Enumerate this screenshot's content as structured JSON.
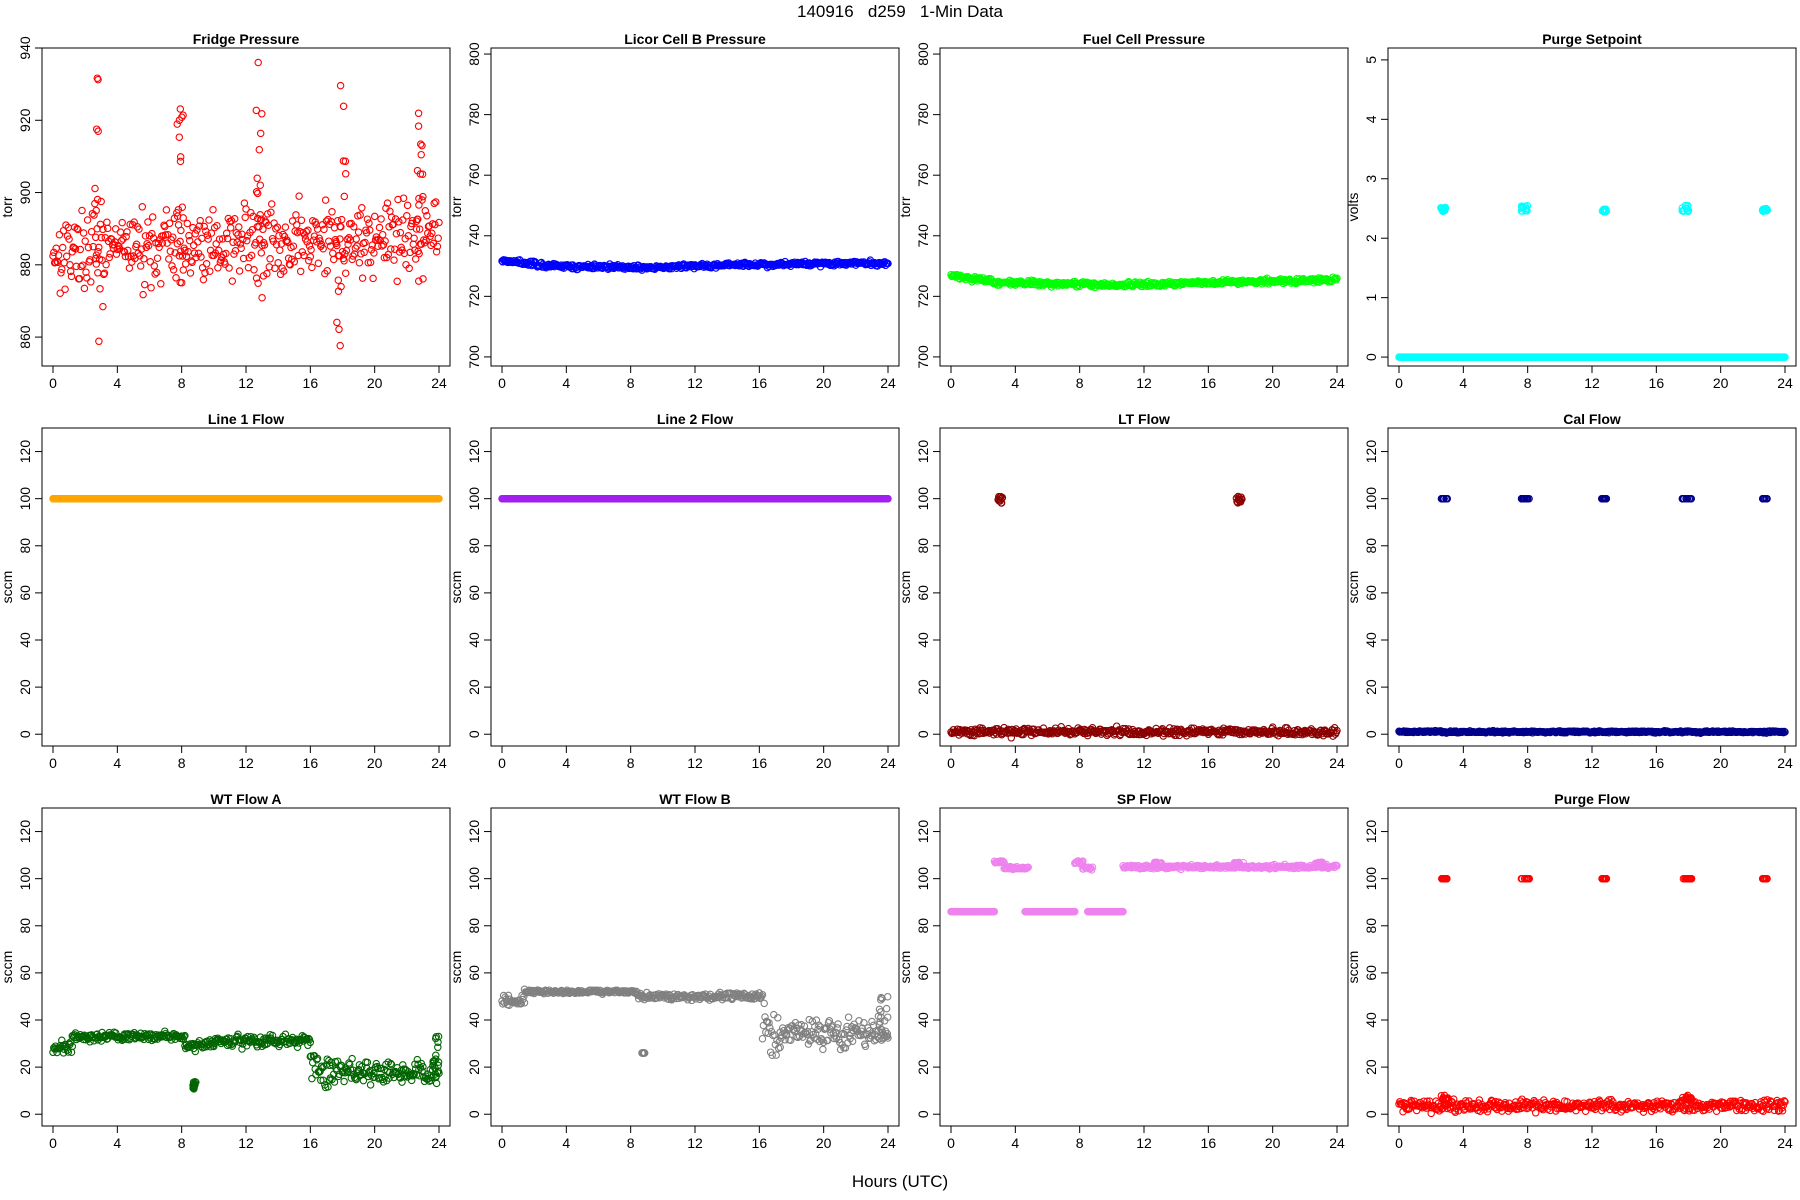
{
  "page": {
    "title": "140916   d259   1-Min Data",
    "xlabel": "Hours (UTC)"
  },
  "chart_data": [
    {
      "type": "scatter",
      "title": "Fridge Pressure",
      "ylabel": "torr",
      "xlim": [
        0,
        24
      ],
      "ylim": [
        852,
        940
      ],
      "xticks": [
        0,
        4,
        8,
        12,
        16,
        20,
        24
      ],
      "yticks": [
        860,
        880,
        900,
        920,
        940
      ],
      "color": "#ff0000",
      "marker": "open-circle",
      "segments": [
        {
          "x": [
            0,
            24
          ],
          "y": [
            884,
            888
          ],
          "noise": 5
        }
      ],
      "bursts": [
        {
          "x": [
            2.6,
            3.1
          ],
          "y": [
            858,
            933
          ]
        },
        {
          "x": [
            7.6,
            8.1
          ],
          "y": [
            862,
            935
          ]
        },
        {
          "x": [
            12.6,
            13.1
          ],
          "y": [
            865,
            939
          ]
        },
        {
          "x": [
            17.6,
            18.3
          ],
          "y": [
            855,
            935
          ]
        },
        {
          "x": [
            22.6,
            23.1
          ],
          "y": [
            866,
            938
          ]
        }
      ]
    },
    {
      "type": "scatter",
      "title": "Licor Cell B Pressure",
      "ylabel": "torr",
      "xlim": [
        0,
        24
      ],
      "ylim": [
        697,
        802
      ],
      "xticks": [
        0,
        4,
        8,
        12,
        16,
        20,
        24
      ],
      "yticks": [
        700,
        720,
        740,
        760,
        780,
        800
      ],
      "color": "#0000ff",
      "marker": "open-circle",
      "segments": [
        {
          "x": [
            0,
            3
          ],
          "y": [
            732,
            730
          ],
          "noise": 0.4
        },
        {
          "x": [
            3,
            9
          ],
          "y": [
            730,
            729.5
          ],
          "noise": 0.4
        },
        {
          "x": [
            9,
            15
          ],
          "y": [
            729.5,
            730.5
          ],
          "noise": 0.4
        },
        {
          "x": [
            15,
            24
          ],
          "y": [
            730.5,
            731
          ],
          "noise": 0.4
        }
      ]
    },
    {
      "type": "scatter",
      "title": "Fuel Cell Pressure",
      "ylabel": "torr",
      "xlim": [
        0,
        24
      ],
      "ylim": [
        697,
        802
      ],
      "xticks": [
        0,
        4,
        8,
        12,
        16,
        20,
        24
      ],
      "yticks": [
        700,
        720,
        740,
        760,
        780,
        800
      ],
      "color": "#00ff00",
      "marker": "open-circle",
      "segments": [
        {
          "x": [
            0,
            3
          ],
          "y": [
            727,
            724.5
          ],
          "noise": 0.4
        },
        {
          "x": [
            3,
            10
          ],
          "y": [
            724.5,
            723.8
          ],
          "noise": 0.4
        },
        {
          "x": [
            10,
            16
          ],
          "y": [
            723.8,
            724.5
          ],
          "noise": 0.4
        },
        {
          "x": [
            16,
            24
          ],
          "y": [
            724.5,
            725.5
          ],
          "noise": 0.4
        }
      ]
    },
    {
      "type": "scatter",
      "title": "Purge Setpoint",
      "ylabel": "volts",
      "xlim": [
        0,
        24
      ],
      "ylim": [
        -0.15,
        5.2
      ],
      "xticks": [
        0,
        4,
        8,
        12,
        16,
        20,
        24
      ],
      "yticks": [
        0,
        1,
        2,
        3,
        4,
        5
      ],
      "color": "#00ffff",
      "marker": "open-circle",
      "segments": [
        {
          "x": [
            0,
            24
          ],
          "y": [
            0,
            0
          ],
          "noise": 0
        }
      ],
      "bursts": [
        {
          "x": [
            2.6,
            2.9
          ],
          "y": [
            2.45,
            2.52
          ]
        },
        {
          "x": [
            7.6,
            8.0
          ],
          "y": [
            2.45,
            2.55
          ]
        },
        {
          "x": [
            12.6,
            12.9
          ],
          "y": [
            2.44,
            2.5
          ]
        },
        {
          "x": [
            17.6,
            18.0
          ],
          "y": [
            2.45,
            2.55
          ]
        },
        {
          "x": [
            22.6,
            22.9
          ],
          "y": [
            2.44,
            2.5
          ]
        }
      ]
    },
    {
      "type": "scatter",
      "title": "Line 1 Flow",
      "ylabel": "sccm",
      "xlim": [
        0,
        24
      ],
      "ylim": [
        -5,
        130
      ],
      "xticks": [
        0,
        4,
        8,
        12,
        16,
        20,
        24
      ],
      "yticks": [
        0,
        20,
        40,
        60,
        80,
        100,
        120
      ],
      "color": "#ffa500",
      "marker": "open-circle",
      "segments": [
        {
          "x": [
            0,
            24
          ],
          "y": [
            100,
            100
          ],
          "noise": 0
        }
      ]
    },
    {
      "type": "scatter",
      "title": "Line 2 Flow",
      "ylabel": "sccm",
      "xlim": [
        0,
        24
      ],
      "ylim": [
        -5,
        130
      ],
      "xticks": [
        0,
        4,
        8,
        12,
        16,
        20,
        24
      ],
      "yticks": [
        0,
        20,
        40,
        60,
        80,
        100,
        120
      ],
      "color": "#a020f0",
      "marker": "open-circle",
      "segments": [
        {
          "x": [
            0,
            24
          ],
          "y": [
            100,
            100
          ],
          "noise": 0
        }
      ]
    },
    {
      "type": "scatter",
      "title": "LT Flow",
      "ylabel": "sccm",
      "xlim": [
        0,
        24
      ],
      "ylim": [
        -5,
        130
      ],
      "xticks": [
        0,
        4,
        8,
        12,
        16,
        20,
        24
      ],
      "yticks": [
        0,
        20,
        40,
        60,
        80,
        100,
        120
      ],
      "color": "#8b0000",
      "marker": "open-circle",
      "segments": [
        {
          "x": [
            0,
            24
          ],
          "y": [
            1,
            1
          ],
          "noise": 0.8
        }
      ],
      "bursts": [
        {
          "x": [
            2.8,
            3.2
          ],
          "y": [
            98,
            101
          ]
        },
        {
          "x": [
            17.7,
            18.1
          ],
          "y": [
            98,
            101
          ]
        }
      ]
    },
    {
      "type": "scatter",
      "title": "Cal Flow",
      "ylabel": "sccm",
      "xlim": [
        0,
        24
      ],
      "ylim": [
        -5,
        130
      ],
      "xticks": [
        0,
        4,
        8,
        12,
        16,
        20,
        24
      ],
      "yticks": [
        0,
        20,
        40,
        60,
        80,
        100,
        120
      ],
      "color": "#00008b",
      "marker": "open-circle",
      "segments": [
        {
          "x": [
            0,
            24
          ],
          "y": [
            1,
            1
          ],
          "noise": 0.2
        }
      ],
      "bursts": [
        {
          "x": [
            2.6,
            3.0
          ],
          "y": [
            100,
            100
          ]
        },
        {
          "x": [
            7.6,
            8.1
          ],
          "y": [
            100,
            100
          ]
        },
        {
          "x": [
            12.6,
            12.9
          ],
          "y": [
            100,
            100
          ]
        },
        {
          "x": [
            17.6,
            18.2
          ],
          "y": [
            100,
            100
          ]
        },
        {
          "x": [
            22.6,
            22.9
          ],
          "y": [
            100,
            100
          ]
        }
      ]
    },
    {
      "type": "scatter",
      "title": "WT Flow A",
      "ylabel": "sccm",
      "xlim": [
        0,
        24
      ],
      "ylim": [
        -5,
        130
      ],
      "xticks": [
        0,
        4,
        8,
        12,
        16,
        20,
        24
      ],
      "yticks": [
        0,
        20,
        40,
        60,
        80,
        100,
        120
      ],
      "color": "#006400",
      "marker": "open-circle",
      "segments": [
        {
          "x": [
            0,
            1.2
          ],
          "y": [
            28,
            29
          ],
          "noise": 1.5
        },
        {
          "x": [
            1.2,
            8.2
          ],
          "y": [
            33,
            33
          ],
          "noise": 0.9
        },
        {
          "x": [
            8.2,
            10
          ],
          "y": [
            29,
            30
          ],
          "noise": 1
        },
        {
          "x": [
            10,
            16
          ],
          "y": [
            31,
            31
          ],
          "noise": 1.2
        },
        {
          "x": [
            16,
            17.2
          ],
          "y": [
            22,
            14
          ],
          "noise": 4
        },
        {
          "x": [
            17.2,
            24
          ],
          "y": [
            18,
            18
          ],
          "noise": 2.5
        }
      ],
      "bursts": [
        {
          "x": [
            8.7,
            8.9
          ],
          "y": [
            10,
            14
          ]
        },
        {
          "x": [
            23.6,
            24
          ],
          "y": [
            15,
            34
          ]
        }
      ]
    },
    {
      "type": "scatter",
      "title": "WT Flow B",
      "ylabel": "sccm",
      "xlim": [
        0,
        24
      ],
      "ylim": [
        -5,
        130
      ],
      "xticks": [
        0,
        4,
        8,
        12,
        16,
        20,
        24
      ],
      "yticks": [
        0,
        20,
        40,
        60,
        80,
        100,
        120
      ],
      "color": "#808080",
      "marker": "open-circle",
      "segments": [
        {
          "x": [
            0,
            1.4
          ],
          "y": [
            48,
            48
          ],
          "noise": 1
        },
        {
          "x": [
            1.4,
            8.4
          ],
          "y": [
            52,
            52
          ],
          "noise": 0.4
        },
        {
          "x": [
            8.4,
            16.2
          ],
          "y": [
            50,
            50
          ],
          "noise": 0.8
        },
        {
          "x": [
            16.2,
            17.3
          ],
          "y": [
            40,
            28
          ],
          "noise": 5
        },
        {
          "x": [
            17.3,
            24
          ],
          "y": [
            36,
            34
          ],
          "noise": 3
        }
      ],
      "bursts": [
        {
          "x": [
            8.7,
            8.9
          ],
          "y": [
            26,
            26
          ]
        },
        {
          "x": [
            23.4,
            24
          ],
          "y": [
            31,
            51
          ]
        }
      ]
    },
    {
      "type": "scatter",
      "title": "SP Flow",
      "ylabel": "sccm",
      "xlim": [
        0,
        24
      ],
      "ylim": [
        -5,
        130
      ],
      "xticks": [
        0,
        4,
        8,
        12,
        16,
        20,
        24
      ],
      "yticks": [
        0,
        20,
        40,
        60,
        80,
        100,
        120
      ],
      "color": "#ee82ee",
      "marker": "open-circle",
      "segments": [
        {
          "x": [
            0,
            2.7
          ],
          "y": [
            86,
            86
          ],
          "noise": 0
        },
        {
          "x": [
            2.7,
            3.3
          ],
          "y": [
            107,
            107
          ],
          "noise": 0.3
        },
        {
          "x": [
            3.3,
            4.8
          ],
          "y": [
            104.5,
            104.5
          ],
          "noise": 0.3
        },
        {
          "x": [
            4.6,
            7.7
          ],
          "y": [
            86,
            86
          ],
          "noise": 0
        },
        {
          "x": [
            7.7,
            8.2
          ],
          "y": [
            107,
            107
          ],
          "noise": 0.3
        },
        {
          "x": [
            8.2,
            8.8
          ],
          "y": [
            104.5,
            104.5
          ],
          "noise": 0.3
        },
        {
          "x": [
            8.5,
            10.7
          ],
          "y": [
            86,
            86
          ],
          "noise": 0
        },
        {
          "x": [
            10.7,
            24
          ],
          "y": [
            105,
            105
          ],
          "noise": 0.4
        }
      ],
      "bursts": [
        {
          "x": [
            12.6,
            13.1
          ],
          "y": [
            106,
            107
          ]
        },
        {
          "x": [
            17.6,
            18.2
          ],
          "y": [
            106,
            107
          ]
        },
        {
          "x": [
            22.6,
            23.1
          ],
          "y": [
            106,
            107
          ]
        }
      ]
    },
    {
      "type": "scatter",
      "title": "Purge Flow",
      "ylabel": "sccm",
      "xlim": [
        0,
        24
      ],
      "ylim": [
        -5,
        130
      ],
      "xticks": [
        0,
        4,
        8,
        12,
        16,
        20,
        24
      ],
      "yticks": [
        0,
        20,
        40,
        60,
        80,
        100,
        120
      ],
      "color": "#ff0000",
      "marker": "open-circle",
      "segments": [
        {
          "x": [
            0,
            24
          ],
          "y": [
            3.5,
            3.5
          ],
          "noise": 1.2
        }
      ],
      "bursts": [
        {
          "x": [
            2.6,
            3.0
          ],
          "y": [
            100,
            100
          ]
        },
        {
          "x": [
            2.6,
            3.1
          ],
          "y": [
            6,
            8
          ]
        },
        {
          "x": [
            7.6,
            8.1
          ],
          "y": [
            100,
            100
          ]
        },
        {
          "x": [
            12.6,
            12.9
          ],
          "y": [
            100,
            100
          ]
        },
        {
          "x": [
            17.6,
            18.2
          ],
          "y": [
            100,
            100
          ]
        },
        {
          "x": [
            17.6,
            18.2
          ],
          "y": [
            6,
            8
          ]
        },
        {
          "x": [
            22.6,
            22.9
          ],
          "y": [
            100,
            100
          ]
        }
      ]
    }
  ]
}
